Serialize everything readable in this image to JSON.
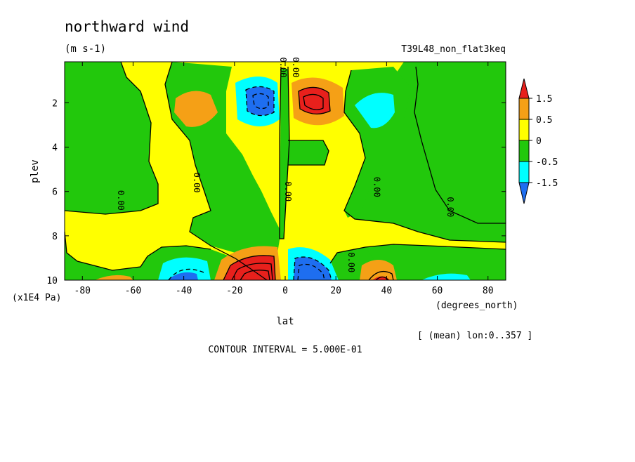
{
  "chart_data": {
    "type": "heatmap",
    "title": "northward wind",
    "units": "(m s-1)",
    "experiment": "T39L48_non_flat3keq",
    "xlabel": "lat",
    "x_units": "(degrees_north)",
    "ylabel": "plev",
    "y_units": "(x1E4 Pa)",
    "xlim": [
      -87,
      87
    ],
    "ylim": [
      0.15,
      10
    ],
    "y_inverted": true,
    "x_ticks": [
      -80,
      -60,
      -40,
      -20,
      0,
      20,
      40,
      60,
      80
    ],
    "x_tick_labels": [
      "-80",
      "-60",
      "-40",
      "-20",
      "0",
      "20",
      "40",
      "60",
      "80"
    ],
    "y_ticks": [
      2,
      4,
      6,
      8,
      10
    ],
    "y_tick_labels": [
      "2",
      "4",
      "6",
      "8",
      "10"
    ],
    "mean_note": "[ (mean) lon:0..357 ]",
    "contour_interval_text": "CONTOUR INTERVAL = 5.000E-01",
    "zero_contour_label": "0.00",
    "colorbar": {
      "levels": [
        -1.5,
        -0.5,
        0,
        0.5,
        1.5
      ],
      "labels": [
        "1.5",
        "0.5",
        "0",
        "-0.5",
        "-1.5"
      ],
      "colors": [
        "#e8201c",
        "#f5a016",
        "#ffff00",
        "#22c80c",
        "#00ffff",
        "#1e6ef0"
      ]
    },
    "fill_regions": [
      {
        "sign": "positive",
        "band": "0 to 0.5",
        "color": "#ffff00",
        "desc": "background westerly-side band"
      },
      {
        "sign": "negative",
        "band": "-0.5 to 0",
        "color": "#22c80c"
      },
      {
        "sign": "positive",
        "center": [
          -10,
          9.7
        ],
        "max": 2.0,
        "color": "#e8201c"
      },
      {
        "sign": "negative",
        "center": [
          10,
          9.7
        ],
        "min": -2.0,
        "color": "#1e6ef0"
      },
      {
        "sign": "negative",
        "center": [
          -9,
          2.0
        ],
        "min": -1.5,
        "color": "#1e6ef0"
      },
      {
        "sign": "positive",
        "center": [
          10,
          2.0
        ],
        "max": 1.5,
        "color": "#e8201c"
      },
      {
        "sign": "positive",
        "center": [
          -42,
          2.2
        ],
        "max": 0.8,
        "color": "#f5a016"
      },
      {
        "sign": "negative",
        "center": [
          37,
          2.4
        ],
        "min": -0.8,
        "color": "#00ffff"
      },
      {
        "sign": "negative",
        "center": [
          -40,
          9.6
        ],
        "min": -1.0,
        "color": "#00ffff"
      },
      {
        "sign": "positive",
        "center": [
          38,
          9.6
        ],
        "max": 1.0,
        "color": "#f5a016"
      }
    ]
  }
}
